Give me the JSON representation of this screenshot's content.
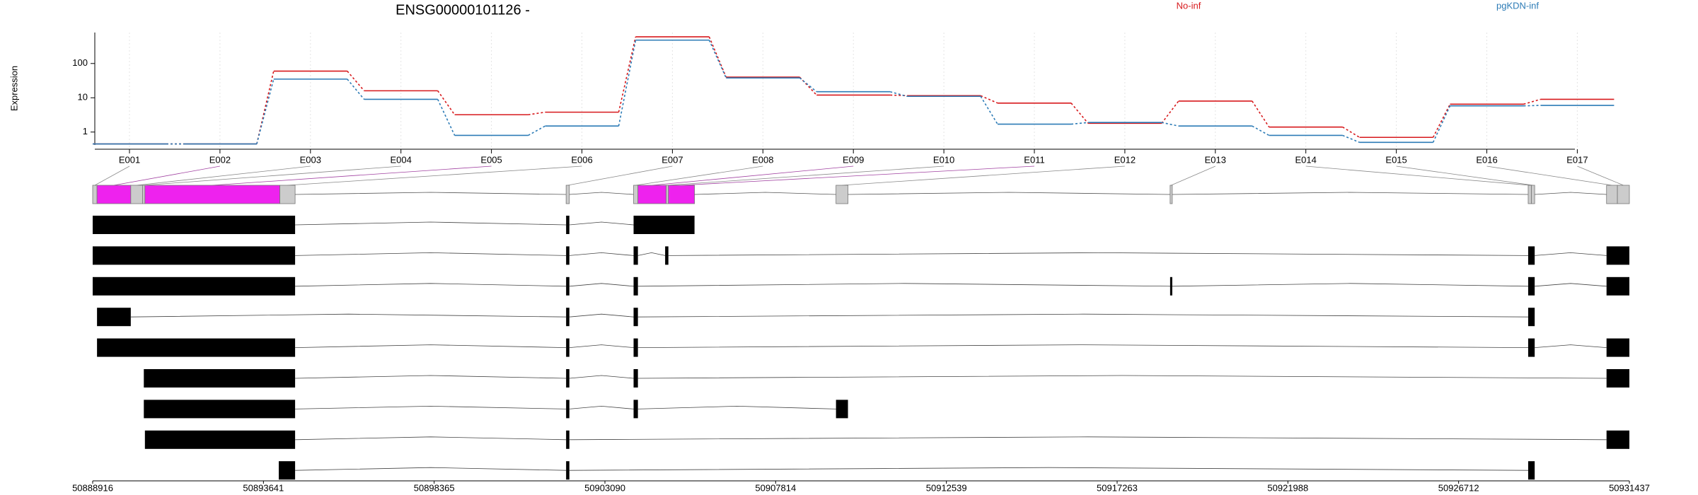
{
  "chart_data": {
    "type": "line",
    "title": "ENSG00000101126 -",
    "ylabel": "Expression",
    "categories": [
      "E001",
      "E002",
      "E003",
      "E004",
      "E005",
      "E006",
      "E007",
      "E008",
      "E009",
      "E010",
      "E011",
      "E012",
      "E013",
      "E014",
      "E015",
      "E016",
      "E017"
    ],
    "series": [
      {
        "name": "No-inf",
        "color": "#d7191c",
        "values": [
          0.45,
          0.45,
          60,
          16,
          3.2,
          3.8,
          600,
          40,
          12,
          11.5,
          7,
          1.8,
          8,
          1.4,
          0.7,
          6.5,
          9
        ]
      },
      {
        "name": "pgKDN-inf",
        "color": "#2c7bb6",
        "values": [
          0.45,
          0.45,
          35,
          9,
          0.8,
          1.5,
          480,
          38,
          15,
          11,
          1.7,
          1.9,
          1.5,
          0.8,
          0.5,
          5.8,
          6
        ]
      }
    ],
    "ylim": [
      0.42,
      800
    ],
    "yticks": [
      1,
      10,
      100
    ],
    "log_y": true,
    "grid": true,
    "exon_bins": [
      [
        50888916,
        50889036
      ],
      [
        50889036,
        50889970
      ],
      [
        50889970,
        50890300
      ],
      [
        50890300,
        50890361
      ],
      [
        50890361,
        50894096
      ],
      [
        50894096,
        50894517
      ],
      [
        50902016,
        50902106
      ],
      [
        50903883,
        50904003
      ],
      [
        50904003,
        50904786
      ],
      [
        50904786,
        50904846
      ],
      [
        50904846,
        50905569
      ],
      [
        50909484,
        50909815
      ],
      [
        50918729,
        50918789
      ],
      [
        50928637,
        50928727
      ],
      [
        50928727,
        50928817
      ],
      [
        50930805,
        50931106
      ],
      [
        50931106,
        50931437
      ]
    ],
    "bin_colors": [
      "#cccccc",
      "#ee22ee",
      "#cccccc",
      "#cccccc",
      "#ee22ee",
      "#cccccc",
      "#cccccc",
      "#cccccc",
      "#ee22ee",
      "#cccccc",
      "#ee22ee",
      "#cccccc",
      "#cccccc",
      "#cccccc",
      "#cccccc",
      "#cccccc",
      "#cccccc"
    ],
    "transcripts": [
      {
        "exons": [
          [
            50888916,
            50894517
          ],
          [
            50902016,
            50902106
          ],
          [
            50903883,
            50905569
          ]
        ]
      },
      {
        "exons": [
          [
            50888916,
            50894517
          ],
          [
            50902016,
            50902106
          ],
          [
            50903883,
            50904003
          ],
          [
            50904756,
            50904846
          ],
          [
            50928637,
            50928817
          ],
          [
            50930805,
            50931437
          ]
        ]
      },
      {
        "exons": [
          [
            50888916,
            50894517
          ],
          [
            50902016,
            50902106
          ],
          [
            50903883,
            50904003
          ],
          [
            50918729,
            50918789
          ],
          [
            50928637,
            50928817
          ],
          [
            50930805,
            50931437
          ]
        ]
      },
      {
        "exons": [
          [
            50889036,
            50889970
          ],
          [
            50902016,
            50902106
          ],
          [
            50903883,
            50904003
          ],
          [
            50928637,
            50928817
          ]
        ]
      },
      {
        "exons": [
          [
            50889036,
            50894517
          ],
          [
            50902016,
            50902106
          ],
          [
            50903883,
            50904003
          ],
          [
            50928637,
            50928817
          ],
          [
            50930805,
            50931437
          ]
        ]
      },
      {
        "exons": [
          [
            50890331,
            50894517
          ],
          [
            50902016,
            50902106
          ],
          [
            50903883,
            50904003
          ],
          [
            50930805,
            50931437
          ]
        ]
      },
      {
        "exons": [
          [
            50890331,
            50894517
          ],
          [
            50902016,
            50902106
          ],
          [
            50903883,
            50904003
          ],
          [
            50909484,
            50909815
          ]
        ]
      },
      {
        "exons": [
          [
            50890361,
            50894517
          ],
          [
            50902016,
            50902106
          ],
          [
            50930805,
            50931437
          ]
        ]
      },
      {
        "exons": [
          [
            50894065,
            50894517
          ],
          [
            50902016,
            50902106
          ],
          [
            50928637,
            50928817
          ]
        ]
      }
    ],
    "genome_xlim": [
      50888916,
      50931437
    ],
    "genome_xticks": [
      50888916,
      50893641,
      50898365,
      50903090,
      50907814,
      50912539,
      50917263,
      50921988,
      50926712,
      50931437
    ]
  }
}
